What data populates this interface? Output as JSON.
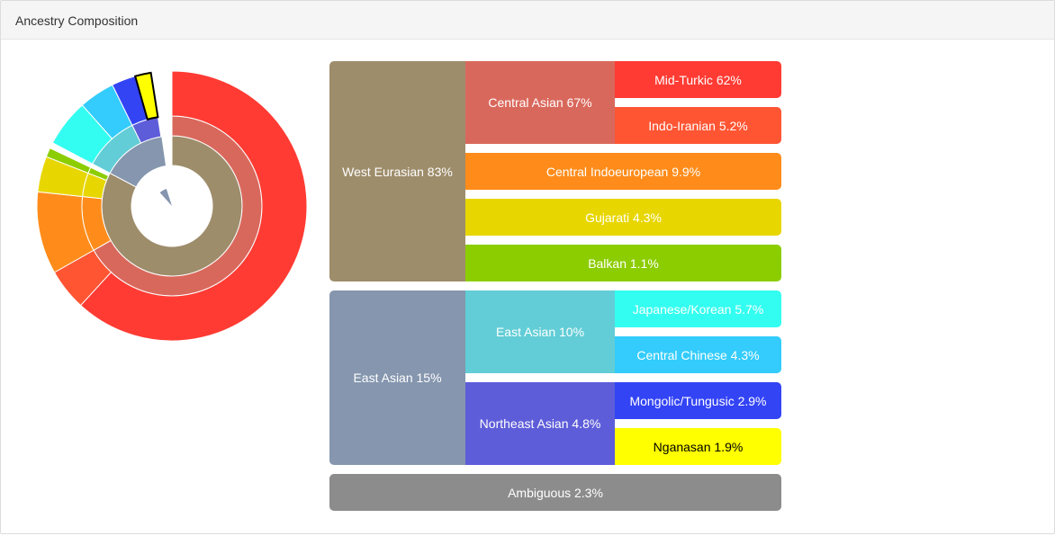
{
  "header": {
    "title": "Ancestry Composition"
  },
  "chart_data": {
    "type": "sunburst",
    "title": "Ancestry Composition",
    "categories": [
      {
        "label": "West Eurasian 83%",
        "value": 83,
        "color": "#9e8d6b",
        "children": [
          {
            "label": "Central Asian 67%",
            "value": 67,
            "color": "#d9685c",
            "children": [
              {
                "label": "Mid-Turkic 62%",
                "value": 62,
                "color": "#ff3b33"
              },
              {
                "label": "Indo-Iranian 5.2%",
                "value": 5.2,
                "color": "#ff5533"
              }
            ]
          },
          {
            "label": "Central Indoeuropean 9.9%",
            "value": 9.9,
            "color": "#ff8c1a"
          },
          {
            "label": "Gujarati 4.3%",
            "value": 4.3,
            "color": "#e8d600"
          },
          {
            "label": "Balkan 1.1%",
            "value": 1.1,
            "color": "#8ccd00"
          }
        ]
      },
      {
        "label": "East Asian 15%",
        "value": 15,
        "color": "#8596ae",
        "children": [
          {
            "label": "East Asian 10%",
            "value": 10,
            "color": "#62cdd6",
            "children": [
              {
                "label": "Japanese/Korean 5.7%",
                "value": 5.7,
                "color": "#33fdf0"
              },
              {
                "label": "Central Chinese 4.3%",
                "value": 4.3,
                "color": "#33ccfd"
              }
            ]
          },
          {
            "label": "Northeast Asian 4.8%",
            "value": 4.8,
            "color": "#5e5dd9",
            "children": [
              {
                "label": "Mongolic/Tungusic 2.9%",
                "value": 2.9,
                "color": "#3344f5"
              },
              {
                "label": "Nganasan 1.9%",
                "value": 1.9,
                "color": "#ffff00",
                "text_color": "#000000",
                "highlighted": true
              }
            ]
          }
        ]
      },
      {
        "label": "Ambiguous 2.3%",
        "value": 2.3,
        "color": "#8c8c8c"
      }
    ]
  }
}
